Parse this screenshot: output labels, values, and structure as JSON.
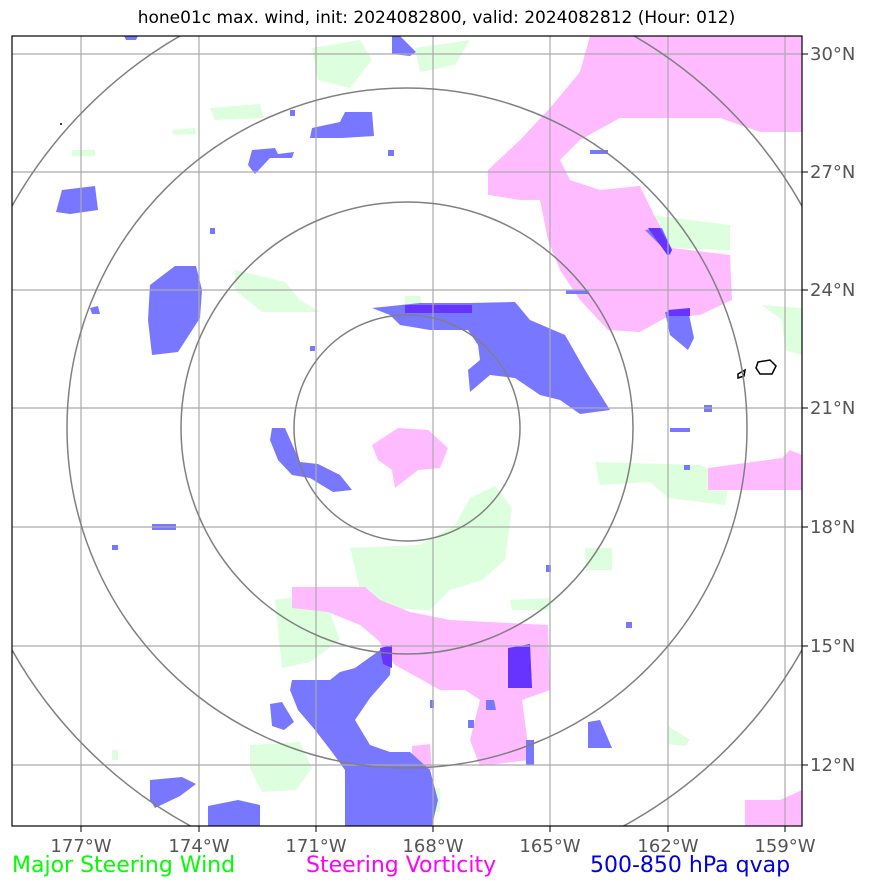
{
  "title": "hone01c max. wind, init: 2024082800, valid: 2024082812 (Hour: 012)",
  "lon_labels": [
    "177°W",
    "174°W",
    "171°W",
    "168°W",
    "165°W",
    "162°W",
    "159°W"
  ],
  "lat_labels": [
    "30°N",
    "27°N",
    "24°N",
    "21°N",
    "18°N",
    "15°N",
    "12°N"
  ],
  "legend": [
    {
      "label": "Major Steering Wind",
      "color": "#00ff00"
    },
    {
      "label": "Steering Vorticity",
      "color": "#ff00ff"
    },
    {
      "label": "500-850 hPa qvap",
      "color": "#0000dd"
    }
  ],
  "colors": {
    "wind_fill": "#ddffdd",
    "vorticity_fill": "#ffbbff",
    "qvap_fill": "#7777ff",
    "qvap_dark": "#6633ff",
    "range_rings": "#808080",
    "gridlines": "#aaaaaa"
  },
  "range_ring_center": {
    "lon": -168.5,
    "lat": 20.6
  }
}
